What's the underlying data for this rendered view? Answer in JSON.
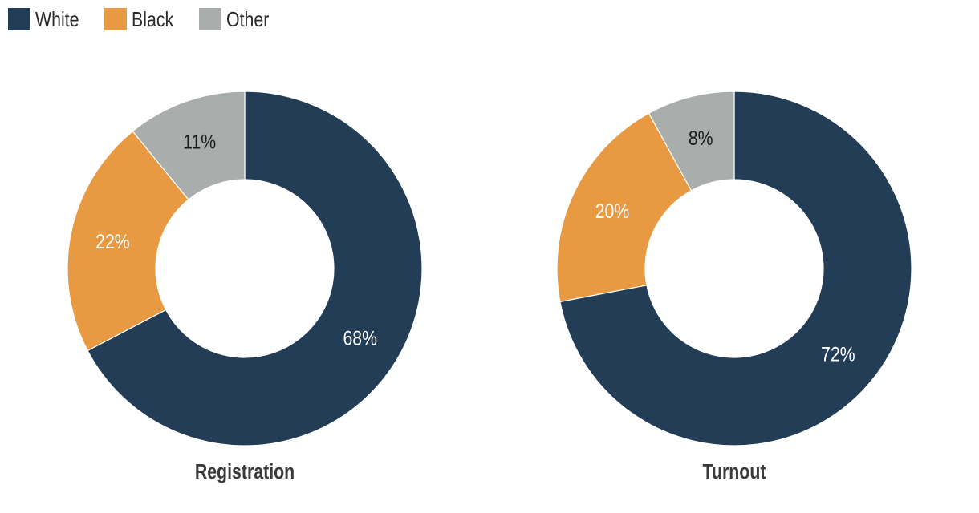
{
  "legend": {
    "items": [
      {
        "label": "White",
        "color": "#233d56"
      },
      {
        "label": "Black",
        "color": "#e89a42"
      },
      {
        "label": "Other",
        "color": "#a9adac"
      }
    ]
  },
  "chart_data": [
    {
      "type": "pie",
      "variant": "donut",
      "title": "Registration",
      "categories": [
        "White",
        "Black",
        "Other"
      ],
      "values": [
        68,
        22,
        11
      ],
      "labels": [
        "68%",
        "22%",
        "11%"
      ],
      "label_colors": [
        "#ffffff",
        "#ffffff",
        "#1a1a1a"
      ],
      "colors": [
        "#233d56",
        "#e89a42",
        "#a9adac"
      ]
    },
    {
      "type": "pie",
      "variant": "donut",
      "title": "Turnout",
      "categories": [
        "White",
        "Black",
        "Other"
      ],
      "values": [
        72,
        20,
        8
      ],
      "labels": [
        "72%",
        "20%",
        "8%"
      ],
      "label_colors": [
        "#ffffff",
        "#ffffff",
        "#1a1a1a"
      ],
      "colors": [
        "#233d56",
        "#e89a42",
        "#a9adac"
      ]
    }
  ]
}
